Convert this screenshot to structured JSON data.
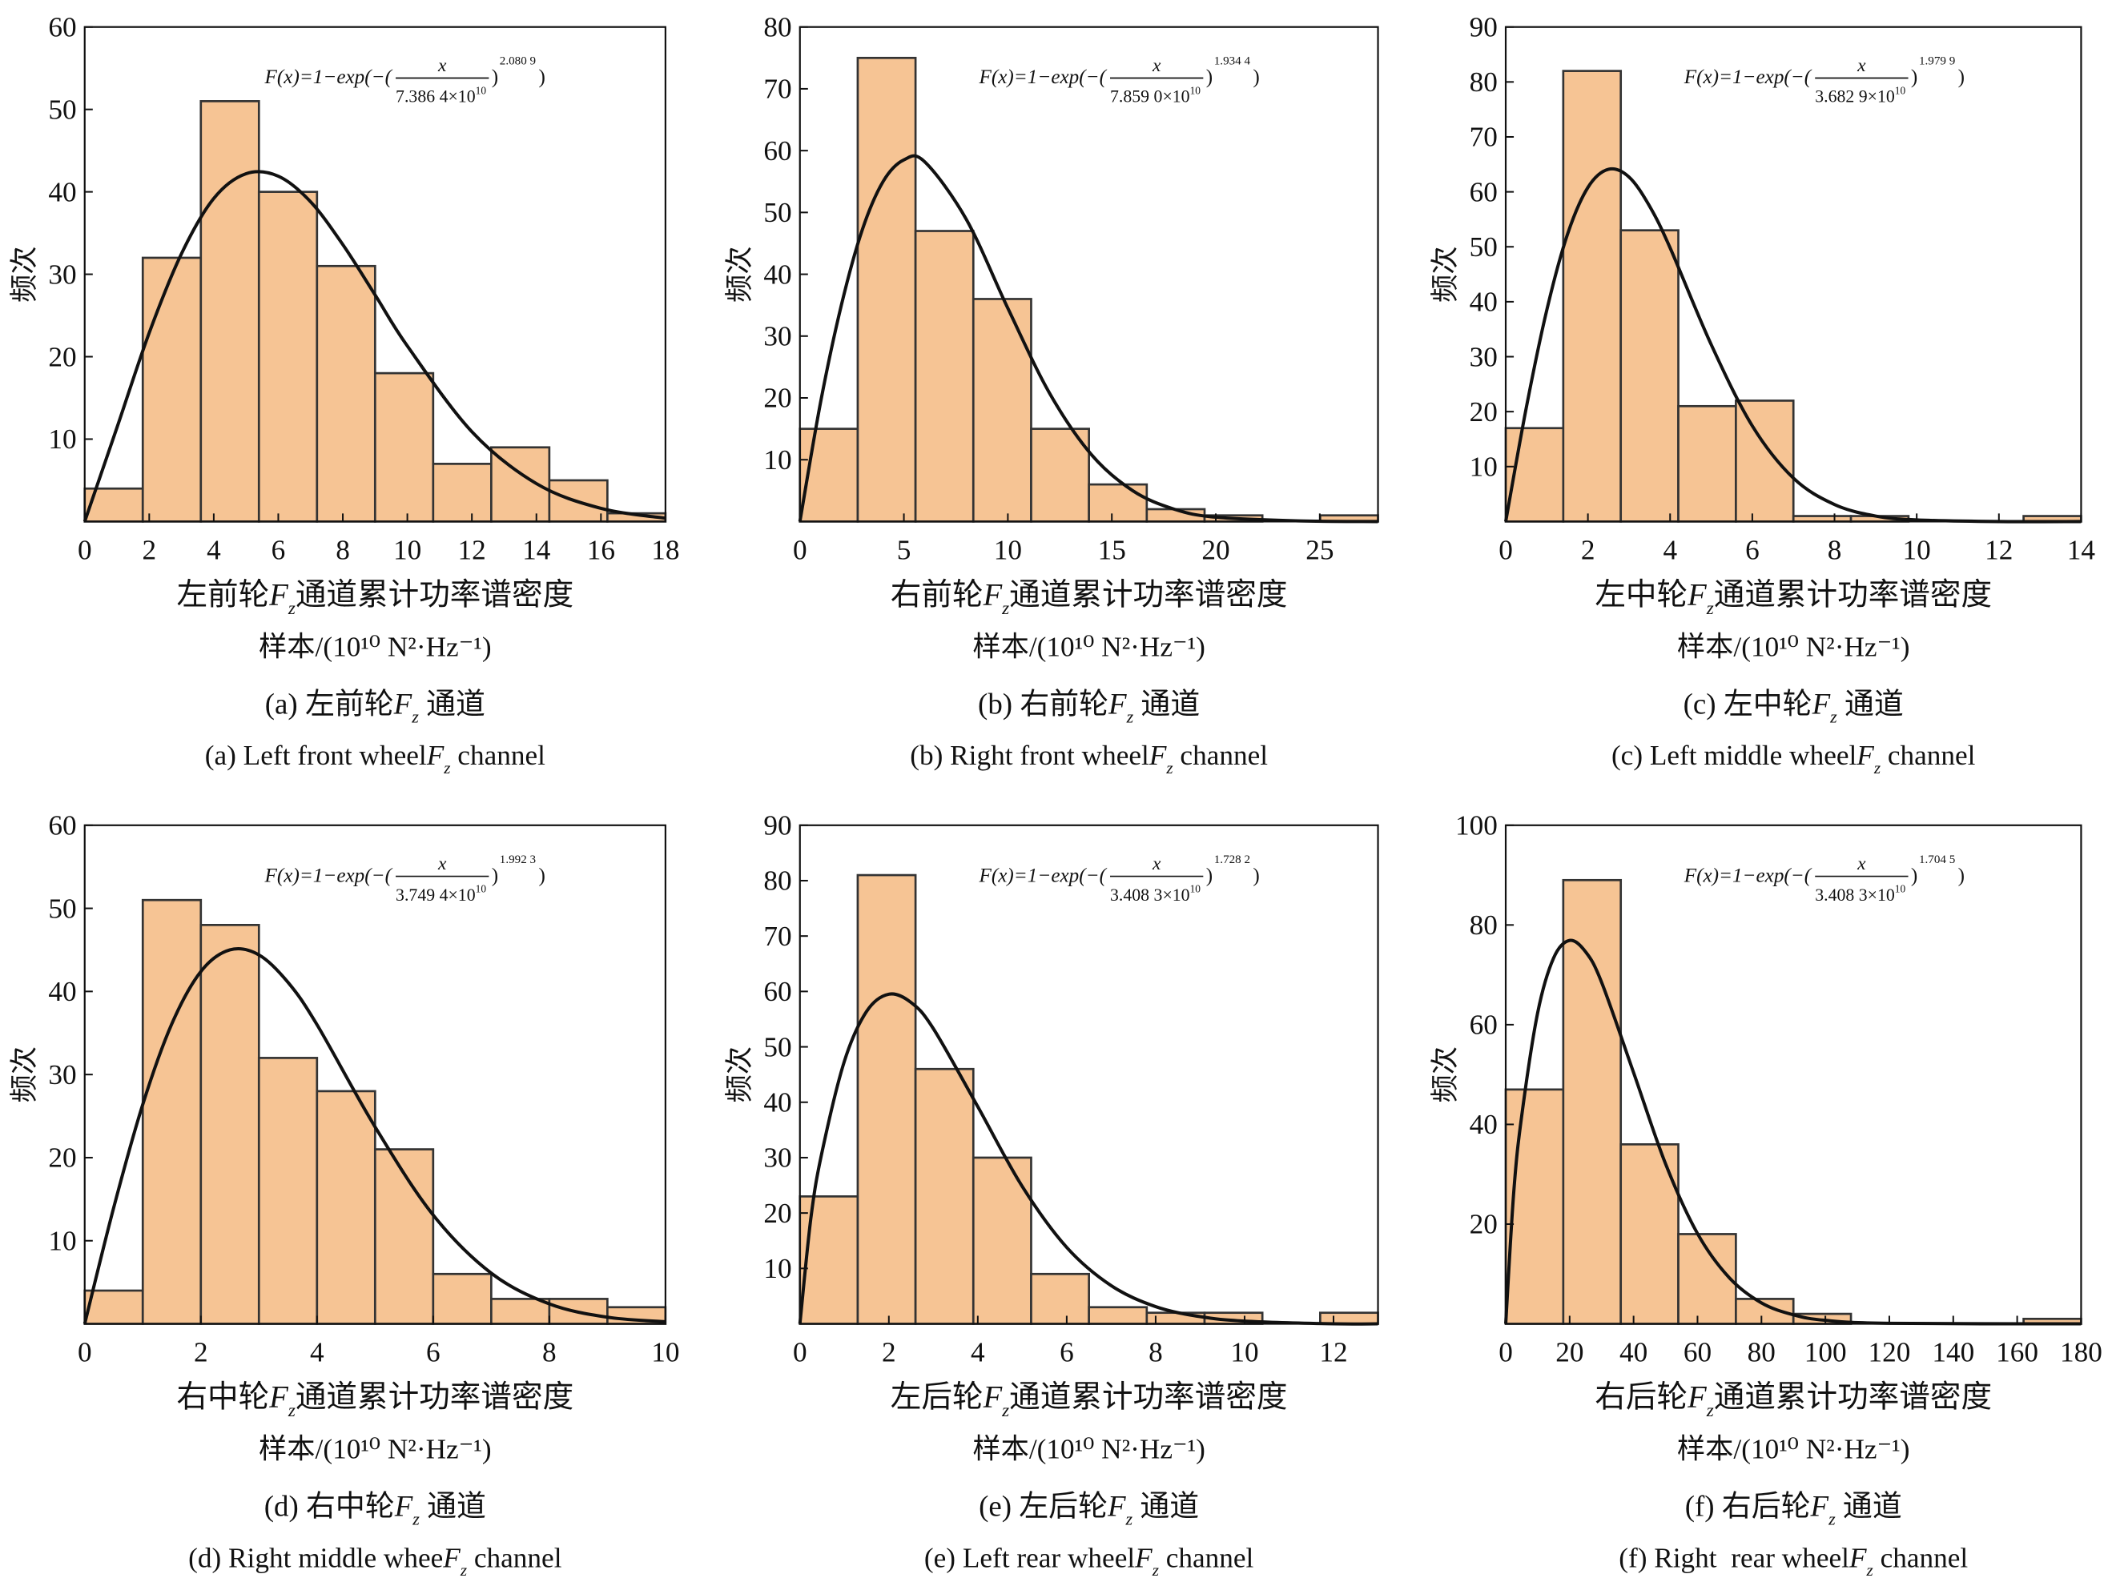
{
  "chart_data": [
    {
      "type": "histogram",
      "bins": [
        0,
        1.8,
        3.6,
        5.4,
        7.2,
        9,
        10.8,
        12.6,
        14.4,
        16.2,
        18
      ],
      "counts": [
        4,
        32,
        51,
        40,
        31,
        18,
        7,
        9,
        5,
        1
      ],
      "color": "#f6c494",
      "edgecolor": "#333333",
      "curve_color": "#111111",
      "xlim": [
        0,
        18
      ],
      "ylim": [
        0,
        60
      ],
      "xticks": [
        0,
        2,
        4,
        6,
        8,
        10,
        12,
        14,
        16,
        18
      ],
      "yticks": [
        10,
        20,
        30,
        40,
        50,
        60
      ],
      "ylabel": "频次",
      "xlabel": {
        "prefix": "左前轮",
        "var": "F",
        "sub": "z",
        "suffix": "通道累计功率谱密度"
      },
      "xlabel_unit": "样本/(10¹⁰ N²·Hz⁻¹)",
      "caption_zh": {
        "label": "(a)",
        "prefix": "左前轮",
        "var": "F",
        "sub": "z",
        "suffix": "通道"
      },
      "caption_en": {
        "label": "(a)",
        "prefix": "Left front wheel",
        "var": "F",
        "sub": "z",
        "suffix": "channel"
      },
      "formula": {
        "lhs": "F(x)=1−exp(−(",
        "num": "x",
        "scale": "7.386 4×10",
        "exp10": "10",
        "rparen": ")",
        "shape": "2.080 9"
      },
      "curve": {
        "x": [
          0,
          1,
          2,
          3,
          4,
          5,
          6,
          7,
          8,
          9,
          10,
          12,
          14,
          16,
          18
        ],
        "y": [
          0,
          11.4,
          22.9,
          32.5,
          39.2,
          42.2,
          41.9,
          38.8,
          33.6,
          27.5,
          21.3,
          10.9,
          4.6,
          1.6,
          0.4
        ]
      }
    },
    {
      "type": "histogram",
      "bins": [
        0,
        2.78,
        5.56,
        8.34,
        11.12,
        13.9,
        16.68,
        19.46,
        22.24,
        25.02,
        27.8
      ],
      "counts": [
        15,
        75,
        47,
        36,
        15,
        6,
        2,
        1,
        0,
        1
      ],
      "color": "#f6c494",
      "edgecolor": "#333333",
      "curve_color": "#111111",
      "xlim": [
        0,
        27.8
      ],
      "ylim": [
        0,
        80
      ],
      "xticks": [
        0,
        5,
        10,
        15,
        20,
        25
      ],
      "yticks": [
        10,
        20,
        30,
        40,
        50,
        60,
        70,
        80
      ],
      "ylabel": "频次",
      "xlabel": {
        "prefix": "右前轮",
        "var": "F",
        "sub": "z",
        "suffix": "通道累计功率谱密度"
      },
      "xlabel_unit": "样本/(10¹⁰ N²·Hz⁻¹)",
      "caption_zh": {
        "label": "(b)",
        "prefix": "右前轮",
        "var": "F",
        "sub": "z",
        "suffix": "通道"
      },
      "caption_en": {
        "label": "(b)",
        "prefix": "Right front wheel",
        "var": "F",
        "sub": "z",
        "suffix": "channel"
      },
      "formula": {
        "lhs": "F(x)=1−exp(−(",
        "num": "x",
        "scale": "7.859 0×10",
        "exp10": "10",
        "rparen": ")",
        "shape": "1.934 4"
      },
      "curve": {
        "x": [
          0,
          1,
          2,
          3,
          4,
          5,
          6,
          8,
          10,
          12,
          14,
          16,
          18,
          20,
          24,
          27.8
        ],
        "y": [
          0,
          19.4,
          35.1,
          47.2,
          55,
          58.5,
          58.2,
          48.9,
          34.5,
          20.8,
          10.9,
          5,
          2,
          0.7,
          0.1,
          0
        ]
      }
    },
    {
      "type": "histogram",
      "bins": [
        0,
        1.4,
        2.8,
        4.2,
        5.6,
        7,
        8.4,
        9.8,
        11.2,
        12.6,
        14
      ],
      "counts": [
        17,
        82,
        53,
        21,
        22,
        1,
        1,
        0,
        0,
        1
      ],
      "color": "#f6c494",
      "edgecolor": "#333333",
      "curve_color": "#111111",
      "xlim": [
        0,
        14
      ],
      "ylim": [
        0,
        90
      ],
      "xticks": [
        0,
        2,
        4,
        6,
        8,
        10,
        12,
        14
      ],
      "yticks": [
        10,
        20,
        30,
        40,
        50,
        60,
        70,
        80,
        90
      ],
      "ylabel": "频次",
      "xlabel": {
        "prefix": "左中轮",
        "var": "F",
        "sub": "z",
        "suffix": "通道累计功率谱密度"
      },
      "xlabel_unit": "样本/(10¹⁰ N²·Hz⁻¹)",
      "caption_zh": {
        "label": "(c)",
        "prefix": "左中轮",
        "var": "F",
        "sub": "z",
        "suffix": "通道"
      },
      "caption_en": {
        "label": "(c)",
        "prefix": "Left middle wheel",
        "var": "F",
        "sub": "z",
        "suffix": "channel"
      },
      "formula": {
        "lhs": "F(x)=1−exp(−(",
        "num": "x",
        "scale": "3.682 9×10",
        "exp10": "10",
        "rparen": ")",
        "shape": "1.979 9"
      },
      "curve": {
        "x": [
          0,
          0.5,
          1,
          1.5,
          2,
          2.5,
          3,
          3.5,
          4,
          5,
          6,
          7,
          8,
          9,
          10,
          12,
          14
        ],
        "y": [
          0,
          20.7,
          38.5,
          52.2,
          60.8,
          64.1,
          62.7,
          57.4,
          49.8,
          32.2,
          17.4,
          7.9,
          3.1,
          1,
          0.3,
          0,
          0
        ]
      }
    },
    {
      "type": "histogram",
      "bins": [
        0,
        1,
        2,
        3,
        4,
        5,
        6,
        7,
        8,
        9,
        10
      ],
      "counts": [
        4,
        51,
        48,
        32,
        28,
        21,
        6,
        3,
        3,
        2
      ],
      "color": "#f6c494",
      "edgecolor": "#333333",
      "curve_color": "#111111",
      "xlim": [
        0,
        10
      ],
      "ylim": [
        0,
        60
      ],
      "xticks": [
        0,
        2,
        4,
        6,
        8,
        10
      ],
      "yticks": [
        10,
        20,
        30,
        40,
        50,
        60
      ],
      "ylabel": "频次",
      "xlabel": {
        "prefix": "右中轮",
        "var": "F",
        "sub": "z",
        "suffix": "通道累计功率谱密度"
      },
      "xlabel_unit": "样本/(10¹⁰ N²·Hz⁻¹)",
      "caption_zh": {
        "label": "(d)",
        "prefix": "右中轮",
        "var": "F",
        "sub": "z",
        "suffix": "通道"
      },
      "caption_en": {
        "label": "(d)",
        "prefix": "Right middle whee",
        "var": "F",
        "sub": "z",
        "suffix": "channel"
      },
      "formula": {
        "lhs": "F(x)=1−exp(−(",
        "num": "x",
        "scale": "3.749 4×10",
        "exp10": "10",
        "rparen": ")",
        "shape": "1.992 3"
      },
      "curve": {
        "x": [
          0,
          0.5,
          1,
          1.5,
          2,
          2.5,
          3,
          3.5,
          4,
          5,
          6,
          7,
          8,
          9,
          10
        ],
        "y": [
          0,
          14,
          26.4,
          36.1,
          42.4,
          45,
          44.4,
          41.1,
          36,
          23.7,
          13.1,
          6.1,
          2.4,
          0.8,
          0.25
        ]
      }
    },
    {
      "type": "histogram",
      "bins": [
        0,
        1.3,
        2.6,
        3.9,
        5.2,
        6.5,
        7.8,
        9.1,
        10.4,
        11.7,
        13
      ],
      "counts": [
        23,
        81,
        46,
        30,
        9,
        3,
        2,
        2,
        0,
        2
      ],
      "color": "#f6c494",
      "edgecolor": "#333333",
      "curve_color": "#111111",
      "xlim": [
        0,
        13
      ],
      "ylim": [
        0,
        90
      ],
      "xticks": [
        0,
        2,
        4,
        6,
        8,
        10,
        12
      ],
      "yticks": [
        10,
        20,
        30,
        40,
        50,
        60,
        70,
        80,
        90
      ],
      "ylabel": "频次",
      "xlabel": {
        "prefix": "左后轮",
        "var": "F",
        "sub": "z",
        "suffix": "通道累计功率谱密度"
      },
      "xlabel_unit": "样本/(10¹⁰ N²·Hz⁻¹)",
      "caption_zh": {
        "label": "(e)",
        "prefix": "左后轮",
        "var": "F",
        "sub": "z",
        "suffix": "通道"
      },
      "caption_en": {
        "label": "(e)",
        "prefix": "Left rear wheel",
        "var": "F",
        "sub": "z",
        "suffix": "channel"
      },
      "formula": {
        "lhs": "F(x)=1−exp(−(",
        "num": "x",
        "scale": "3.408 3×10",
        "exp10": "10",
        "rparen": ")",
        "shape": "1.728 2"
      },
      "curve": {
        "x": [
          0,
          0.25,
          0.5,
          1,
          1.5,
          2,
          2.5,
          3,
          4,
          5,
          6,
          7,
          8,
          9,
          10,
          12,
          13
        ],
        "y": [
          0,
          19.3,
          31.1,
          47.4,
          56.4,
          59.5,
          58,
          53.3,
          39.2,
          24.8,
          13.8,
          6.9,
          3.1,
          1.3,
          0.5,
          0,
          0
        ]
      }
    },
    {
      "type": "histogram",
      "bins": [
        0,
        18,
        36,
        54,
        72,
        90,
        108,
        126,
        144,
        162,
        180
      ],
      "counts": [
        47,
        89,
        36,
        18,
        5,
        2,
        0,
        0,
        0,
        1
      ],
      "color": "#f6c494",
      "edgecolor": "#333333",
      "curve_color": "#111111",
      "xlim": [
        0,
        180
      ],
      "ylim": [
        0,
        100
      ],
      "xticks": [
        0,
        20,
        40,
        60,
        80,
        100,
        120,
        140,
        160,
        180
      ],
      "yticks": [
        20,
        40,
        60,
        80,
        100
      ],
      "ylabel": "频次",
      "xlabel": {
        "prefix": "右后轮",
        "var": "F",
        "sub": "z",
        "suffix": "通道累计功率谱密度"
      },
      "xlabel_unit": "样本/(10¹⁰ N²·Hz⁻¹)",
      "caption_zh": {
        "label": "(f)",
        "prefix": "右后轮",
        "var": "F",
        "sub": "z",
        "suffix": "通道"
      },
      "caption_en": {
        "label": "(f)",
        "prefix": "Right  rear wheel",
        "var": "F",
        "sub": "z",
        "suffix": "channel"
      },
      "formula": {
        "lhs": "F(x)=1−exp(−(",
        "num": "x",
        "scale": "3.408 3×10",
        "exp10": "10",
        "rparen": ")",
        "shape": "1.704 5"
      },
      "curve": {
        "x": [
          0,
          2.5,
          5,
          10,
          15,
          20,
          25,
          30,
          40,
          50,
          60,
          70,
          80,
          90,
          100,
          120,
          180
        ],
        "y": [
          0,
          26.3,
          41.7,
          62.4,
          73.4,
          76.9,
          74.6,
          68.5,
          50.4,
          32.1,
          18.1,
          9.2,
          4.2,
          1.8,
          0.7,
          0.1,
          0
        ]
      }
    }
  ]
}
